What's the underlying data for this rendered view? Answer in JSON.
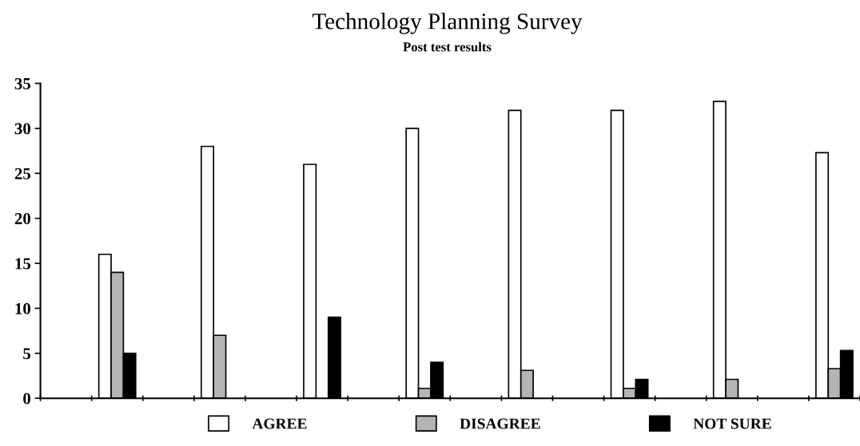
{
  "chart_data": {
    "type": "bar",
    "title": "Technology Planning Survey",
    "subtitle": "Post test results",
    "categories": [
      null,
      null,
      null,
      null,
      null,
      null,
      null,
      null,
      null,
      null,
      null,
      null,
      null,
      null,
      null,
      null
    ],
    "series": [
      {
        "name": "AGREE",
        "color": "#ffffff",
        "values": [
          null,
          16,
          null,
          28,
          null,
          26,
          null,
          30,
          null,
          32,
          null,
          32,
          null,
          33,
          null,
          27.3
        ]
      },
      {
        "name": "DISAGREE",
        "color": "#b4b4b4",
        "values": [
          null,
          14,
          null,
          7,
          null,
          0,
          null,
          1.1,
          null,
          3.1,
          null,
          1.1,
          null,
          2.1,
          null,
          3.3
        ]
      },
      {
        "name": "NOT SURE",
        "color": "#000000",
        "values": [
          null,
          5,
          null,
          0,
          null,
          9,
          null,
          4,
          null,
          0,
          null,
          2.1,
          null,
          0,
          null,
          5.3
        ]
      }
    ],
    "ylim": [
      0,
      35
    ],
    "yticks": [
      0,
      5,
      10,
      15,
      20,
      25,
      30,
      35
    ],
    "grid": false,
    "legend": "bottom"
  }
}
